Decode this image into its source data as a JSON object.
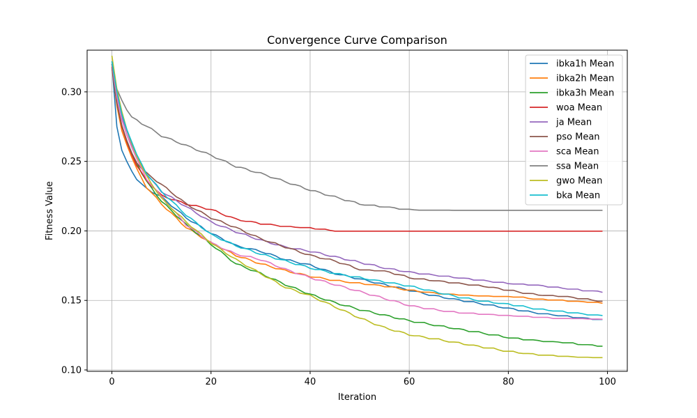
{
  "chart_data": {
    "type": "line",
    "title": "Convergence Curve Comparison",
    "xlabel": "Iteration",
    "ylabel": "Fitness Value",
    "xlim": [
      -5,
      104
    ],
    "ylim": [
      0.099,
      0.33
    ],
    "xticks": [
      0,
      20,
      40,
      60,
      80,
      100
    ],
    "yticks": [
      0.1,
      0.15,
      0.2,
      0.25,
      0.3
    ],
    "ytick_labels": [
      "0.10",
      "0.15",
      "0.20",
      "0.25",
      "0.30"
    ],
    "grid": true,
    "legend_position": "upper-right",
    "series": [
      {
        "name": "ibka1h Mean",
        "color": "#1f77b4",
        "anchors": [
          [
            0,
            0.32
          ],
          [
            1,
            0.275
          ],
          [
            2,
            0.258
          ],
          [
            3,
            0.25
          ],
          [
            4,
            0.243
          ],
          [
            5,
            0.237
          ],
          [
            7,
            0.231
          ],
          [
            10,
            0.225
          ],
          [
            15,
            0.21
          ],
          [
            20,
            0.199
          ],
          [
            25,
            0.19
          ],
          [
            30,
            0.186
          ],
          [
            35,
            0.18
          ],
          [
            40,
            0.176
          ],
          [
            45,
            0.17
          ],
          [
            50,
            0.166
          ],
          [
            55,
            0.162
          ],
          [
            60,
            0.158
          ],
          [
            65,
            0.154
          ],
          [
            70,
            0.151
          ],
          [
            75,
            0.148
          ],
          [
            80,
            0.145
          ],
          [
            85,
            0.142
          ],
          [
            90,
            0.14
          ],
          [
            95,
            0.138
          ],
          [
            99,
            0.137
          ]
        ]
      },
      {
        "name": "ibka2h Mean",
        "color": "#ff7f0e",
        "anchors": [
          [
            0,
            0.318
          ],
          [
            1,
            0.29
          ],
          [
            2,
            0.272
          ],
          [
            3,
            0.262
          ],
          [
            4,
            0.253
          ],
          [
            5,
            0.245
          ],
          [
            7,
            0.232
          ],
          [
            10,
            0.22
          ],
          [
            15,
            0.203
          ],
          [
            20,
            0.192
          ],
          [
            25,
            0.183
          ],
          [
            30,
            0.177
          ],
          [
            35,
            0.172
          ],
          [
            40,
            0.168
          ],
          [
            45,
            0.165
          ],
          [
            50,
            0.163
          ],
          [
            55,
            0.161
          ],
          [
            60,
            0.158
          ],
          [
            65,
            0.156
          ],
          [
            70,
            0.155
          ],
          [
            75,
            0.154
          ],
          [
            80,
            0.154
          ],
          [
            85,
            0.152
          ],
          [
            90,
            0.151
          ],
          [
            95,
            0.15
          ],
          [
            99,
            0.149
          ]
        ]
      },
      {
        "name": "ibka3h Mean",
        "color": "#2ca02c",
        "anchors": [
          [
            0,
            0.32
          ],
          [
            1,
            0.292
          ],
          [
            2,
            0.275
          ],
          [
            3,
            0.265
          ],
          [
            4,
            0.256
          ],
          [
            5,
            0.249
          ],
          [
            7,
            0.236
          ],
          [
            10,
            0.222
          ],
          [
            15,
            0.205
          ],
          [
            20,
            0.191
          ],
          [
            25,
            0.177
          ],
          [
            30,
            0.17
          ],
          [
            35,
            0.162
          ],
          [
            40,
            0.155
          ],
          [
            45,
            0.149
          ],
          [
            50,
            0.144
          ],
          [
            55,
            0.14
          ],
          [
            60,
            0.136
          ],
          [
            65,
            0.133
          ],
          [
            70,
            0.13
          ],
          [
            75,
            0.127
          ],
          [
            80,
            0.124
          ],
          [
            85,
            0.122
          ],
          [
            90,
            0.121
          ],
          [
            95,
            0.119
          ],
          [
            99,
            0.118
          ]
        ]
      },
      {
        "name": "woa Mean",
        "color": "#d62728",
        "anchors": [
          [
            0,
            0.318
          ],
          [
            1,
            0.292
          ],
          [
            2,
            0.275
          ],
          [
            3,
            0.264
          ],
          [
            4,
            0.255
          ],
          [
            5,
            0.247
          ],
          [
            7,
            0.237
          ],
          [
            10,
            0.226
          ],
          [
            15,
            0.22
          ],
          [
            20,
            0.216
          ],
          [
            25,
            0.209
          ],
          [
            30,
            0.206
          ],
          [
            35,
            0.204
          ],
          [
            40,
            0.203
          ],
          [
            44,
            0.201
          ],
          [
            50,
            0.201
          ],
          [
            60,
            0.201
          ],
          [
            70,
            0.201
          ],
          [
            80,
            0.201
          ],
          [
            90,
            0.201
          ],
          [
            99,
            0.201
          ]
        ]
      },
      {
        "name": "ja Mean",
        "color": "#9467bd",
        "anchors": [
          [
            0,
            0.322
          ],
          [
            1,
            0.298
          ],
          [
            2,
            0.282
          ],
          [
            3,
            0.272
          ],
          [
            4,
            0.262
          ],
          [
            5,
            0.254
          ],
          [
            7,
            0.241
          ],
          [
            10,
            0.229
          ],
          [
            15,
            0.218
          ],
          [
            20,
            0.207
          ],
          [
            25,
            0.2
          ],
          [
            30,
            0.194
          ],
          [
            35,
            0.189
          ],
          [
            40,
            0.186
          ],
          [
            45,
            0.182
          ],
          [
            50,
            0.178
          ],
          [
            55,
            0.174
          ],
          [
            60,
            0.171
          ],
          [
            65,
            0.169
          ],
          [
            70,
            0.167
          ],
          [
            75,
            0.165
          ],
          [
            80,
            0.163
          ],
          [
            85,
            0.162
          ],
          [
            90,
            0.16
          ],
          [
            95,
            0.158
          ],
          [
            99,
            0.157
          ]
        ]
      },
      {
        "name": "pso Mean",
        "color": "#8c564b",
        "anchors": [
          [
            0,
            0.317
          ],
          [
            1,
            0.292
          ],
          [
            2,
            0.276
          ],
          [
            3,
            0.265
          ],
          [
            4,
            0.256
          ],
          [
            5,
            0.249
          ],
          [
            7,
            0.242
          ],
          [
            10,
            0.234
          ],
          [
            15,
            0.22
          ],
          [
            20,
            0.21
          ],
          [
            25,
            0.203
          ],
          [
            30,
            0.195
          ],
          [
            35,
            0.189
          ],
          [
            40,
            0.183
          ],
          [
            45,
            0.179
          ],
          [
            50,
            0.173
          ],
          [
            55,
            0.172
          ],
          [
            60,
            0.167
          ],
          [
            65,
            0.165
          ],
          [
            70,
            0.163
          ],
          [
            75,
            0.161
          ],
          [
            80,
            0.158
          ],
          [
            85,
            0.155
          ],
          [
            90,
            0.154
          ],
          [
            95,
            0.152
          ],
          [
            99,
            0.15
          ]
        ]
      },
      {
        "name": "sca Mean",
        "color": "#e377c2",
        "anchors": [
          [
            0,
            0.32
          ],
          [
            1,
            0.296
          ],
          [
            2,
            0.28
          ],
          [
            3,
            0.269
          ],
          [
            4,
            0.26
          ],
          [
            5,
            0.252
          ],
          [
            7,
            0.238
          ],
          [
            10,
            0.225
          ],
          [
            15,
            0.205
          ],
          [
            20,
            0.192
          ],
          [
            25,
            0.184
          ],
          [
            30,
            0.18
          ],
          [
            35,
            0.173
          ],
          [
            40,
            0.167
          ],
          [
            45,
            0.162
          ],
          [
            50,
            0.157
          ],
          [
            55,
            0.152
          ],
          [
            60,
            0.147
          ],
          [
            65,
            0.144
          ],
          [
            70,
            0.142
          ],
          [
            75,
            0.141
          ],
          [
            80,
            0.14
          ],
          [
            85,
            0.139
          ],
          [
            90,
            0.138
          ],
          [
            95,
            0.138
          ],
          [
            99,
            0.137
          ]
        ]
      },
      {
        "name": "ssa Mean",
        "color": "#7f7f7f",
        "anchors": [
          [
            0,
            0.32
          ],
          [
            1,
            0.302
          ],
          [
            2,
            0.294
          ],
          [
            3,
            0.287
          ],
          [
            4,
            0.282
          ],
          [
            5,
            0.28
          ],
          [
            7,
            0.276
          ],
          [
            10,
            0.269
          ],
          [
            15,
            0.262
          ],
          [
            20,
            0.255
          ],
          [
            25,
            0.247
          ],
          [
            30,
            0.242
          ],
          [
            35,
            0.236
          ],
          [
            40,
            0.23
          ],
          [
            45,
            0.225
          ],
          [
            50,
            0.22
          ],
          [
            55,
            0.218
          ],
          [
            60,
            0.216
          ],
          [
            70,
            0.216
          ],
          [
            80,
            0.216
          ],
          [
            90,
            0.216
          ],
          [
            99,
            0.216
          ]
        ]
      },
      {
        "name": "gwo Mean",
        "color": "#bcbd22",
        "anchors": [
          [
            0,
            0.326
          ],
          [
            1,
            0.302
          ],
          [
            2,
            0.286
          ],
          [
            3,
            0.273
          ],
          [
            4,
            0.263
          ],
          [
            5,
            0.254
          ],
          [
            7,
            0.24
          ],
          [
            10,
            0.224
          ],
          [
            15,
            0.207
          ],
          [
            20,
            0.192
          ],
          [
            25,
            0.18
          ],
          [
            30,
            0.17
          ],
          [
            35,
            0.16
          ],
          [
            40,
            0.154
          ],
          [
            45,
            0.146
          ],
          [
            50,
            0.138
          ],
          [
            55,
            0.131
          ],
          [
            60,
            0.126
          ],
          [
            65,
            0.123
          ],
          [
            70,
            0.12
          ],
          [
            75,
            0.117
          ],
          [
            80,
            0.114
          ],
          [
            85,
            0.112
          ],
          [
            90,
            0.111
          ],
          [
            95,
            0.11
          ],
          [
            99,
            0.11
          ]
        ]
      },
      {
        "name": "bka Mean",
        "color": "#17becf",
        "anchors": [
          [
            0,
            0.322
          ],
          [
            1,
            0.3
          ],
          [
            2,
            0.284
          ],
          [
            3,
            0.273
          ],
          [
            4,
            0.264
          ],
          [
            5,
            0.255
          ],
          [
            7,
            0.242
          ],
          [
            10,
            0.229
          ],
          [
            15,
            0.212
          ],
          [
            20,
            0.198
          ],
          [
            25,
            0.19
          ],
          [
            30,
            0.184
          ],
          [
            35,
            0.179
          ],
          [
            40,
            0.174
          ],
          [
            45,
            0.17
          ],
          [
            50,
            0.167
          ],
          [
            55,
            0.164
          ],
          [
            60,
            0.161
          ],
          [
            65,
            0.157
          ],
          [
            70,
            0.153
          ],
          [
            75,
            0.15
          ],
          [
            80,
            0.148
          ],
          [
            85,
            0.145
          ],
          [
            90,
            0.143
          ],
          [
            95,
            0.141
          ],
          [
            99,
            0.14
          ]
        ]
      }
    ]
  }
}
